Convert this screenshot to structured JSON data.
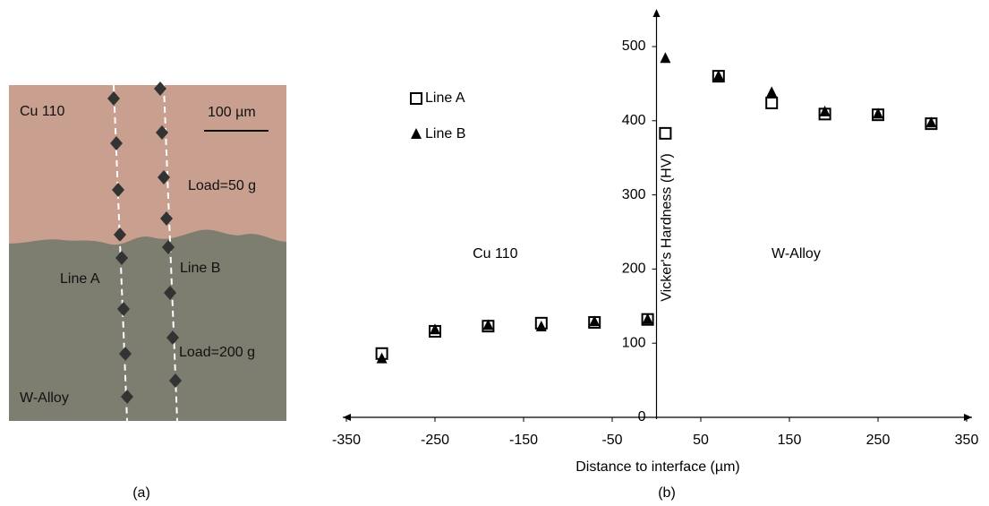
{
  "figure_a": {
    "caption": "(a)",
    "labels": [
      "Cu 110",
      "100 µm",
      "Load=50 g",
      "Line A",
      "Line B",
      "Load=200 g",
      "W-Alloy"
    ]
  },
  "chart_data": {
    "type": "scatter",
    "caption": "(b)",
    "x_label": "Distance to interface (µm)",
    "y_label": "Vicker's Hardness (HV)",
    "annotations": [
      "Cu 110",
      "W-Alloy"
    ],
    "x": [
      -310,
      -250,
      -190,
      -130,
      -70,
      -10,
      10,
      70,
      130,
      190,
      250,
      310
    ],
    "series": [
      {
        "name": "Line A",
        "color": "#000000",
        "marker": "square",
        "values": [
          86,
          116,
          123,
          127,
          128,
          132,
          383,
          460,
          424,
          409,
          408,
          396
        ]
      },
      {
        "name": "Line B",
        "color": "#000000",
        "marker": "triangle",
        "values": [
          79,
          118,
          124,
          122,
          129,
          132,
          484,
          460,
          438,
          412,
          409,
          397
        ]
      }
    ],
    "xlim": [
      -350,
      350
    ],
    "xticks": [
      -350,
      -250,
      -150,
      -50,
      50,
      150,
      250,
      350
    ],
    "ylim": [
      0,
      500
    ],
    "yticks": [
      0,
      100,
      200,
      300,
      400,
      500
    ],
    "legend": "upper left",
    "grid": false
  }
}
